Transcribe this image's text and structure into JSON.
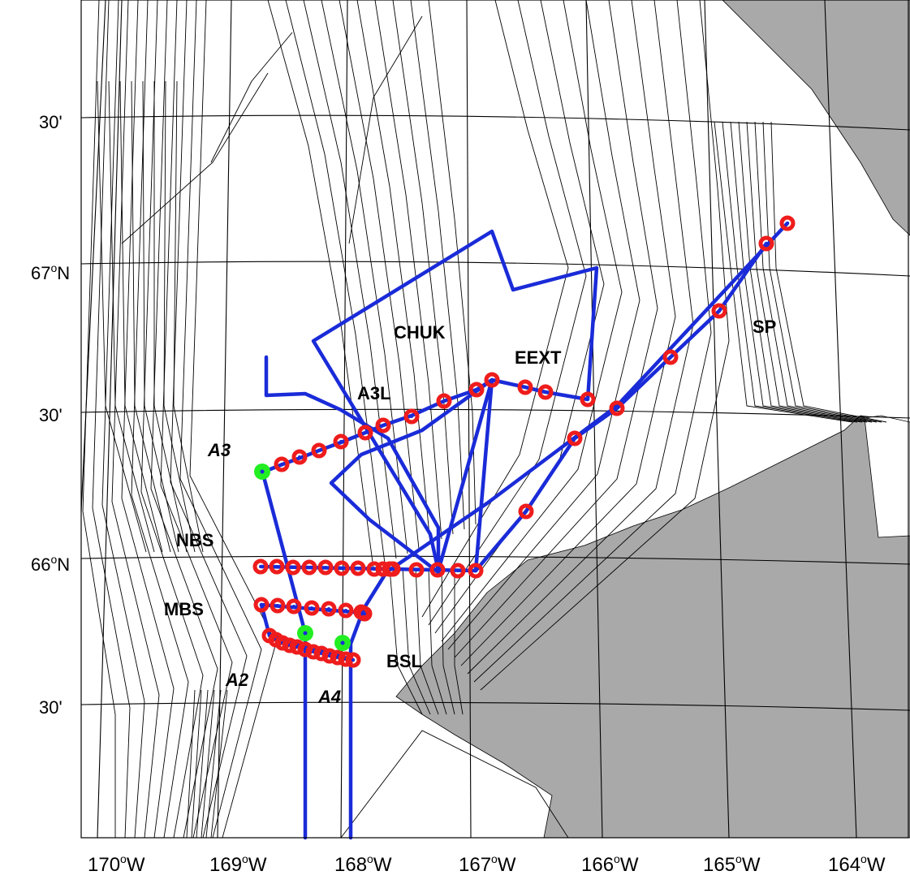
{
  "map": {
    "lat_labels": [
      {
        "deg": "",
        "min": "30'",
        "hemi": ""
      },
      {
        "deg": "67",
        "sup": "o",
        "hemi": "N"
      },
      {
        "deg": "",
        "min": "30'",
        "hemi": ""
      },
      {
        "deg": "66",
        "sup": "o",
        "hemi": "N"
      },
      {
        "deg": "",
        "min": "30'",
        "hemi": ""
      }
    ],
    "lon_labels": [
      {
        "deg": "170",
        "sup": "o",
        "hemi": "W"
      },
      {
        "deg": "169",
        "sup": "o",
        "hemi": "W"
      },
      {
        "deg": "168",
        "sup": "o",
        "hemi": "W"
      },
      {
        "deg": "167",
        "sup": "o",
        "hemi": "W"
      },
      {
        "deg": "166",
        "sup": "o",
        "hemi": "W"
      },
      {
        "deg": "165",
        "sup": "o",
        "hemi": "W"
      },
      {
        "deg": "164",
        "sup": "o",
        "hemi": "W"
      }
    ],
    "regions": {
      "chuk": "CHUK",
      "eext": "EEXT",
      "sp": "SP",
      "a3l": "A3L",
      "a3": "A3",
      "nbs": "NBS",
      "mbs": "MBS",
      "bsl": "BSL",
      "a2": "A2",
      "a4": "A4"
    },
    "colors": {
      "track": "#1a2bd8",
      "station": "#ee1c1c",
      "mooring": "#22ee22",
      "land": "#a9a9a9"
    }
  }
}
